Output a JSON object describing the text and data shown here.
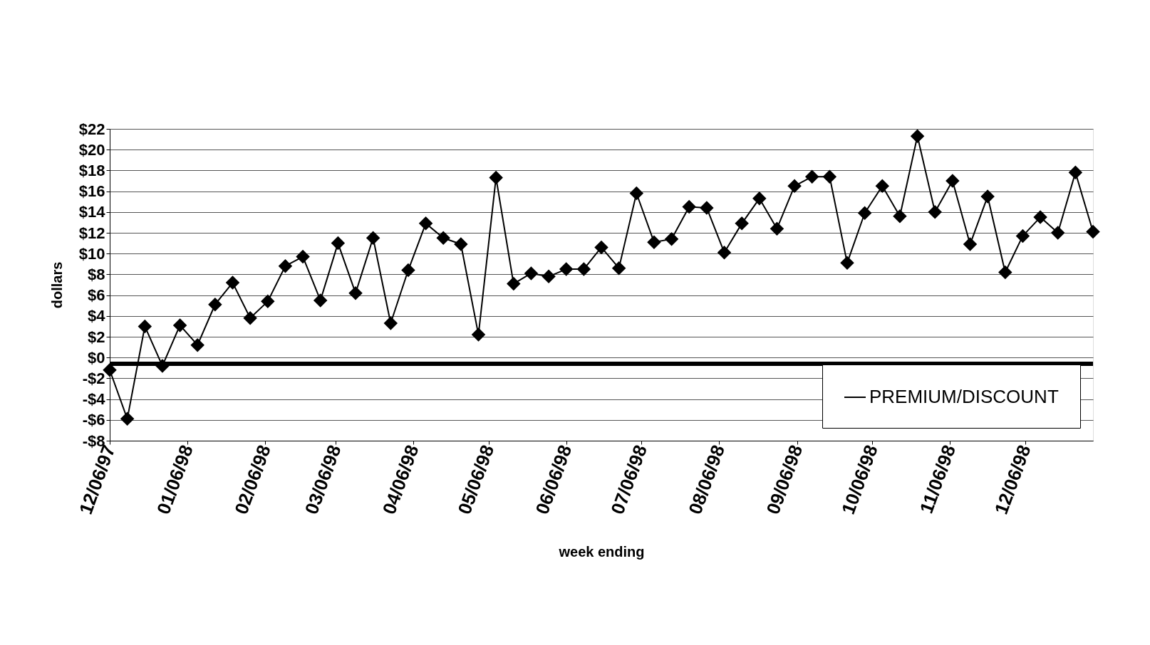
{
  "chart_data": {
    "type": "line",
    "xlabel": "week ending",
    "ylabel": "dollars",
    "x": [
      "1997-12-06",
      "1997-12-13",
      "1997-12-20",
      "1997-12-27",
      "1998-01-03",
      "1998-01-10",
      "1998-01-17",
      "1998-01-24",
      "1998-01-31",
      "1998-02-07",
      "1998-02-14",
      "1998-02-21",
      "1998-02-28",
      "1998-03-07",
      "1998-03-14",
      "1998-03-21",
      "1998-03-28",
      "1998-04-04",
      "1998-04-11",
      "1998-04-18",
      "1998-04-25",
      "1998-05-02",
      "1998-05-09",
      "1998-05-16",
      "1998-05-23",
      "1998-05-30",
      "1998-06-06",
      "1998-06-13",
      "1998-06-20",
      "1998-06-27",
      "1998-07-04",
      "1998-07-11",
      "1998-07-18",
      "1998-07-25",
      "1998-08-01",
      "1998-08-08",
      "1998-08-15",
      "1998-08-22",
      "1998-08-29",
      "1998-09-05",
      "1998-09-12",
      "1998-09-19",
      "1998-09-26",
      "1998-10-03",
      "1998-10-10",
      "1998-10-17",
      "1998-10-24",
      "1998-10-31",
      "1998-11-07",
      "1998-11-14",
      "1998-11-21",
      "1998-11-28",
      "1998-12-05",
      "1998-12-12",
      "1998-12-19",
      "1998-12-26",
      "1999-01-02"
    ],
    "series": [
      {
        "name": "PREMIUM/DISCOUNT",
        "color": "#000000",
        "values": [
          -1.2,
          -5.9,
          3.0,
          -0.8,
          3.1,
          1.2,
          5.1,
          7.2,
          3.8,
          5.4,
          8.8,
          9.7,
          5.5,
          11.0,
          6.2,
          11.5,
          3.3,
          8.4,
          12.9,
          11.5,
          10.9,
          2.2,
          17.3,
          7.1,
          8.1,
          7.8,
          8.5,
          8.5,
          10.6,
          8.6,
          15.8,
          11.1,
          11.4,
          14.5,
          14.4,
          10.1,
          12.9,
          15.3,
          12.4,
          16.5,
          17.4,
          17.4,
          9.1,
          13.9,
          16.5,
          13.6,
          21.3,
          14.0,
          17.0,
          10.9,
          15.5,
          8.2,
          11.7,
          13.5,
          12.0,
          17.8,
          12.1
        ]
      }
    ],
    "xlim": [
      "1997-12-06",
      "1999-01-02"
    ],
    "xticks": [
      {
        "value": "1997-12-06",
        "label": "12/06/97"
      },
      {
        "value": "1998-01-06",
        "label": "01/06/98"
      },
      {
        "value": "1998-02-06",
        "label": "02/06/98"
      },
      {
        "value": "1998-03-06",
        "label": "03/06/98"
      },
      {
        "value": "1998-04-06",
        "label": "04/06/98"
      },
      {
        "value": "1998-05-06",
        "label": "05/06/98"
      },
      {
        "value": "1998-06-06",
        "label": "06/06/98"
      },
      {
        "value": "1998-07-06",
        "label": "07/06/98"
      },
      {
        "value": "1998-08-06",
        "label": "08/06/98"
      },
      {
        "value": "1998-09-06",
        "label": "09/06/98"
      },
      {
        "value": "1998-10-06",
        "label": "10/06/98"
      },
      {
        "value": "1998-11-06",
        "label": "11/06/98"
      },
      {
        "value": "1998-12-06",
        "label": "12/06/98"
      }
    ],
    "ylim": [
      -8,
      22
    ],
    "yticks": [
      {
        "value": -8,
        "label": "-$8"
      },
      {
        "value": -6,
        "label": "-$6"
      },
      {
        "value": -4,
        "label": "-$4"
      },
      {
        "value": -2,
        "label": "-$2"
      },
      {
        "value": 0,
        "label": "$0"
      },
      {
        "value": 2,
        "label": "$2"
      },
      {
        "value": 4,
        "label": "$4"
      },
      {
        "value": 6,
        "label": "$6"
      },
      {
        "value": 8,
        "label": "$8"
      },
      {
        "value": 10,
        "label": "$10"
      },
      {
        "value": 12,
        "label": "$12"
      },
      {
        "value": 14,
        "label": "$14"
      },
      {
        "value": 16,
        "label": "$16"
      },
      {
        "value": 18,
        "label": "$18"
      },
      {
        "value": 20,
        "label": "$20"
      },
      {
        "value": 22,
        "label": "$22"
      }
    ],
    "ref_lines": [
      {
        "axis": "y",
        "value": -0.6,
        "color": "#000000"
      }
    ],
    "grid": "y",
    "legend": "bottom right",
    "marker": "diamond",
    "line_style": "solid"
  }
}
